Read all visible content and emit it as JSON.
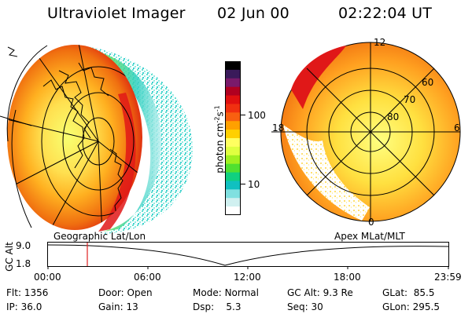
{
  "header": {
    "instrument": "Ultraviolet Imager",
    "date": "02 Jun 00",
    "time": "02:22:04 UT"
  },
  "colorbar": {
    "unit_label": "photon cm",
    "unit_sup1": "-2",
    "unit_mid": "s",
    "unit_sup2": "-1",
    "scale": "log",
    "ticks": [
      "100",
      "10"
    ],
    "colors": [
      "#000000",
      "#3a1a5a",
      "#7a1a6a",
      "#b00020",
      "#e01010",
      "#f03010",
      "#f86010",
      "#ffa000",
      "#ffd000",
      "#ffff60",
      "#e0ff40",
      "#a0f020",
      "#50e030",
      "#10d080",
      "#10c0c0",
      "#80e0e0",
      "#d0f0f0",
      "#ffffff"
    ]
  },
  "left_map": {
    "projection_label": "Geographic Lat/Lon"
  },
  "right_map": {
    "projection_label": "Apex MLat/MLT",
    "lat_labels": [
      "60",
      "70",
      "80"
    ],
    "mlt_labels": [
      "12",
      "18",
      "6",
      "0"
    ]
  },
  "altitude_plot": {
    "ylabel": "GC Alt",
    "yticks": [
      "9.0",
      "1.8"
    ],
    "xticks": [
      "00:00",
      "06:00",
      "12:00",
      "18:00",
      "23:59"
    ],
    "marker_color": "#e02020"
  },
  "info": {
    "flt": {
      "label": "Flt:",
      "value": "1356"
    },
    "ip": {
      "label": "IP:",
      "value": "36.0"
    },
    "door": {
      "label": "Door:",
      "value": "Open"
    },
    "gain": {
      "label": "Gain:",
      "value": "13"
    },
    "mode": {
      "label": "Mode:",
      "value": "Normal"
    },
    "dsp": {
      "label": "Dsp:",
      "value": "5.3"
    },
    "gcalt": {
      "label": "GC Alt:",
      "value": "9.3 Re"
    },
    "seq": {
      "label": "Seq:",
      "value": "30"
    },
    "glat": {
      "label": "GLat:",
      "value": "85.5"
    },
    "glon": {
      "label": "GLon:",
      "value": "295.5"
    }
  }
}
